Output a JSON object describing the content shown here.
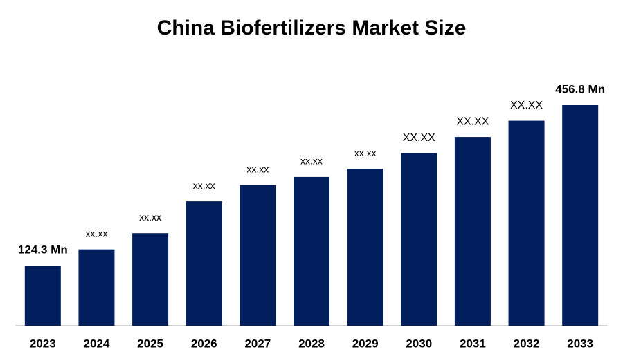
{
  "chart_data": {
    "type": "bar",
    "title": "China Biofertilizers Market Size",
    "categories": [
      "2023",
      "2024",
      "2025",
      "2026",
      "2027",
      "2028",
      "2029",
      "2030",
      "2031",
      "2032",
      "2033"
    ],
    "values": [
      124.3,
      158,
      191.6,
      257.6,
      291.2,
      308,
      324.9,
      357.2,
      390.8,
      424.5,
      456.8
    ],
    "value_labels": [
      "124.3 Mn",
      "xx.xx",
      "xx.xx",
      "xx.xx",
      "xx.xx",
      "xx.xx",
      "xx.xx",
      "XX.XX",
      "XX.XX",
      "XX.XX",
      "456.8 Mn"
    ],
    "color": "#001f5c"
  }
}
